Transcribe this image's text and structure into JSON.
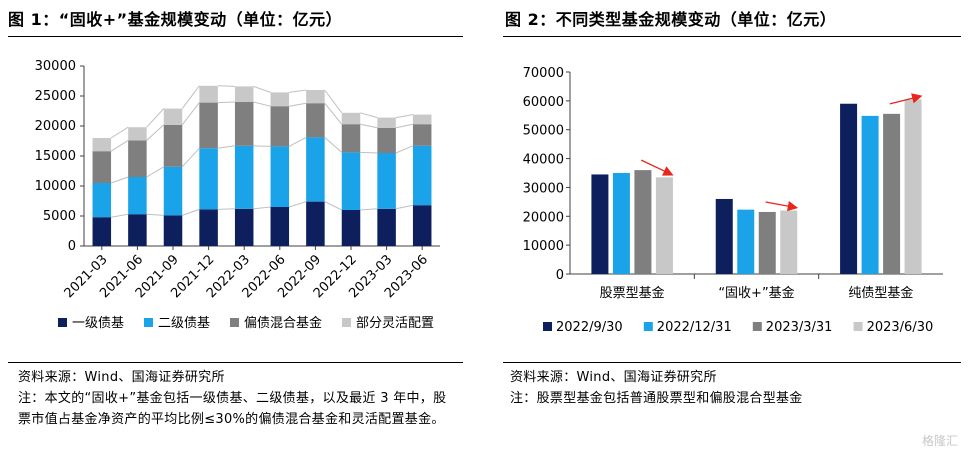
{
  "chart_data": [
    {
      "type": "bar",
      "stacked": true,
      "title": "图 1：“固收+”基金规模变动（单位：亿元）",
      "categories": [
        "2021-03",
        "2021-06",
        "2021-09",
        "2021-12",
        "2022-03",
        "2022-06",
        "2022-09",
        "2022-12",
        "2023-03",
        "2023-06"
      ],
      "series": [
        {
          "name": "一级债基",
          "color": "#0d1f5c",
          "values": [
            4800,
            5300,
            5100,
            6100,
            6200,
            6500,
            7400,
            6000,
            6200,
            6800
          ]
        },
        {
          "name": "二级债基",
          "color": "#1aa3e8",
          "values": [
            5700,
            6200,
            8100,
            10200,
            10500,
            10100,
            10700,
            9600,
            9300,
            9900
          ]
        },
        {
          "name": "偏债混合基金",
          "color": "#7f7f7f",
          "values": [
            5300,
            6100,
            7000,
            7600,
            7300,
            6700,
            5700,
            4700,
            4200,
            3600
          ]
        },
        {
          "name": "部分灵活配置",
          "color": "#c8c8c8",
          "values": [
            2200,
            2200,
            2700,
            2800,
            2600,
            2300,
            2200,
            1900,
            1700,
            1600
          ]
        }
      ],
      "ylim": [
        0,
        30000
      ],
      "yticks": [
        0,
        5000,
        10000,
        15000,
        20000,
        25000,
        30000
      ],
      "gridlines": false,
      "legend_position": "bottom"
    },
    {
      "type": "bar",
      "title": "图 2：不同类型基金规模变动（单位：亿元）",
      "categories": [
        "股票型基金",
        "“固收+”基金",
        "纯债型基金"
      ],
      "series": [
        {
          "name": "2022/9/30",
          "color": "#0d1f5c",
          "values": [
            34500,
            26000,
            59000
          ]
        },
        {
          "name": "2022/12/31",
          "color": "#1aa3e8",
          "values": [
            35000,
            22300,
            54800
          ]
        },
        {
          "name": "2023/3/31",
          "color": "#7f7f7f",
          "values": [
            36000,
            21500,
            55500
          ]
        },
        {
          "name": "2023/6/30",
          "color": "#c8c8c8",
          "values": [
            33500,
            22000,
            60500
          ]
        }
      ],
      "ylim": [
        0,
        70000
      ],
      "yticks": [
        0,
        10000,
        20000,
        30000,
        40000,
        50000,
        60000,
        70000
      ],
      "gridlines": false,
      "legend_position": "bottom",
      "arrow_color": "#e8261c"
    }
  ],
  "notes": {
    "fig1_source": "资料来源：Wind、国海证券研究所",
    "fig1_note": "注：本文的“固收+”基金包括一级债基、二级债基，以及最近 3 年中，股票市值占基金净资产的平均比例≤30%的偏债混合基金和灵活配置基金。",
    "fig2_source": "资料来源：Wind、国海证券研究所",
    "fig2_note": "注：股票型基金包括普通股票型和偏股混合型基金"
  },
  "watermark": "格隆汇"
}
